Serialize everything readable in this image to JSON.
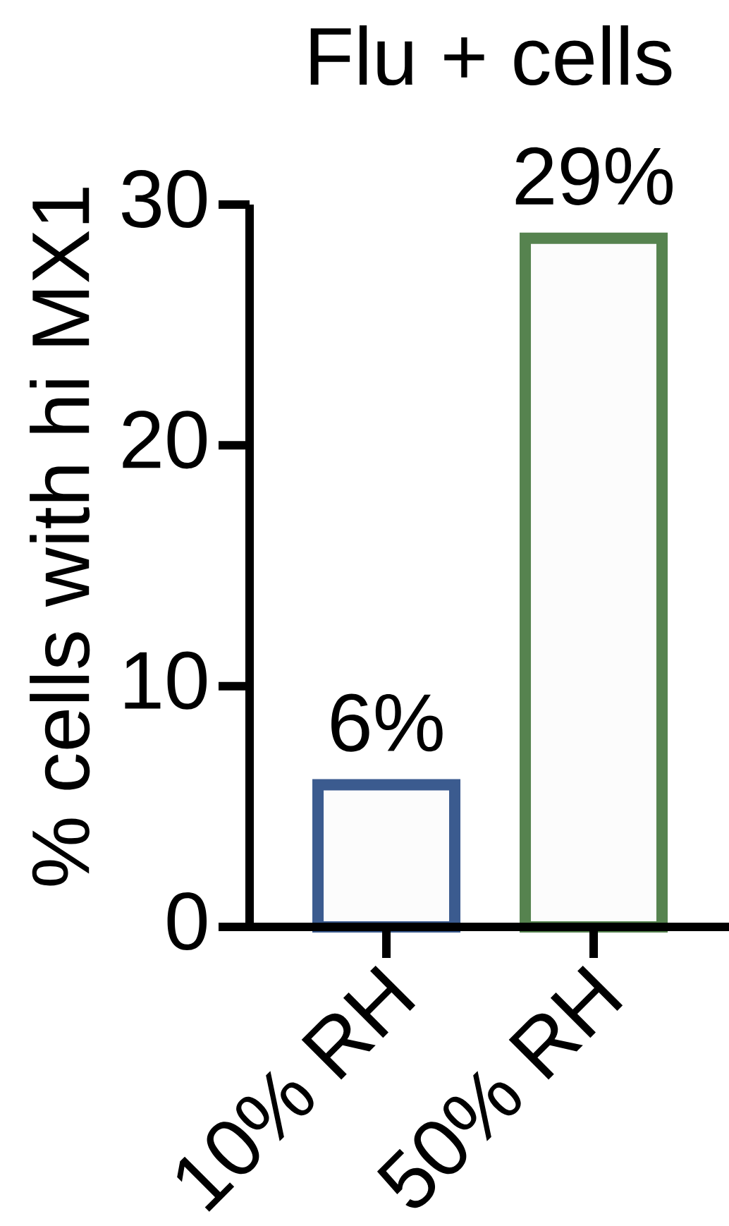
{
  "chart_data": {
    "type": "bar",
    "title": "Flu + cells",
    "ylabel": "% cells with hi MX1",
    "categories": [
      "10% RH",
      "50% RH"
    ],
    "values": [
      5.9,
      28.6
    ],
    "colors": [
      "#3b5b8f",
      "#56834f"
    ],
    "value_labels": [
      "6%",
      "29%"
    ],
    "ylim": [
      0,
      30
    ],
    "yticks": [
      0,
      10,
      20,
      30
    ]
  }
}
